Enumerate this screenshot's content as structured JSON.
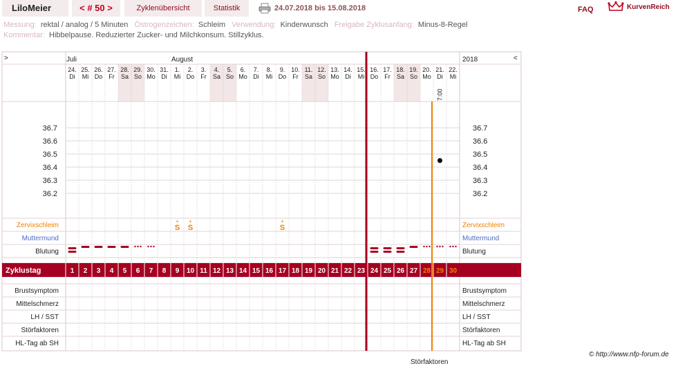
{
  "header": {
    "user": "LiloMeier",
    "nav_prev": "<",
    "nav_label": "# 50",
    "nav_next": ">",
    "tab_cycles": "Zyklenübersicht",
    "tab_stats": "Statistik",
    "date_range": "24.07.2018 bis 15.08.2018",
    "faq": "FAQ",
    "brand": "KurvenReich"
  },
  "info": {
    "measurement_label": "Messung:",
    "measurement_value": "rektal / analog / 5 Minuten",
    "estrogen_label": "Östrogenzeichen:",
    "estrogen_value": "Schleim",
    "usage_label": "Verwendung:",
    "usage_value": "Kinderwunsch",
    "release_label": "Freigabe Zyklusanfang:",
    "release_value": "Minus-8-Regel",
    "comment_label": "Kommentar:",
    "comment_value": "Hibbelpause. Reduzierter Zucker- und Milchkonsum. Stillzyklus."
  },
  "chart": {
    "left_arrow": ">",
    "right_arrow": "<",
    "year": "2018",
    "months": [
      {
        "label": "Juli",
        "day_index": 0
      },
      {
        "label": "August",
        "day_index": 8
      }
    ],
    "days": [
      {
        "d": "24.",
        "w": "Di"
      },
      {
        "d": "25.",
        "w": "Mi"
      },
      {
        "d": "26.",
        "w": "Do"
      },
      {
        "d": "27.",
        "w": "Fr"
      },
      {
        "d": "28.",
        "w": "Sa"
      },
      {
        "d": "29.",
        "w": "So"
      },
      {
        "d": "30.",
        "w": "Mo"
      },
      {
        "d": "31.",
        "w": "Di"
      },
      {
        "d": "1.",
        "w": "Mi"
      },
      {
        "d": "2.",
        "w": "Do"
      },
      {
        "d": "3.",
        "w": "Fr"
      },
      {
        "d": "4.",
        "w": "Sa"
      },
      {
        "d": "5.",
        "w": "So"
      },
      {
        "d": "6.",
        "w": "Mo"
      },
      {
        "d": "7.",
        "w": "Di"
      },
      {
        "d": "8.",
        "w": "Mi"
      },
      {
        "d": "9.",
        "w": "Do"
      },
      {
        "d": "10.",
        "w": "Fr"
      },
      {
        "d": "11.",
        "w": "Sa"
      },
      {
        "d": "12.",
        "w": "So"
      },
      {
        "d": "13.",
        "w": "Mo"
      },
      {
        "d": "14.",
        "w": "Di"
      },
      {
        "d": "15.",
        "w": "Mi"
      },
      {
        "d": "16.",
        "w": "Do"
      },
      {
        "d": "17.",
        "w": "Fr"
      },
      {
        "d": "18.",
        "w": "Sa"
      },
      {
        "d": "19.",
        "w": "So"
      },
      {
        "d": "20.",
        "w": "Mo"
      },
      {
        "d": "21.",
        "w": "Di"
      },
      {
        "d": "22.",
        "w": "Mi"
      }
    ],
    "weekend_index": [
      4,
      5,
      11,
      12,
      18,
      19,
      25,
      26
    ],
    "time_label": "7:00",
    "time_day_index": 28,
    "temp_ticks": [
      "36.7",
      "36.6",
      "36.5",
      "36.4",
      "36.3",
      "36.2"
    ],
    "temperature_points": [
      {
        "day_index": 28,
        "value": 36.45
      }
    ],
    "cervix_label": "Zervixschleim",
    "cervix_marks": [
      {
        "day_index": 8,
        "symbol": "S"
      },
      {
        "day_index": 9,
        "symbol": "S"
      },
      {
        "day_index": 16,
        "symbol": "S"
      }
    ],
    "cervix_plus": "+",
    "mumu_label": "Muttermund",
    "bleeding_label": "Blutung",
    "bleeding": [
      {
        "day_index": 0,
        "type": "heavy"
      },
      {
        "day_index": 1,
        "type": "dash"
      },
      {
        "day_index": 2,
        "type": "dash"
      },
      {
        "day_index": 3,
        "type": "dash"
      },
      {
        "day_index": 4,
        "type": "dash"
      },
      {
        "day_index": 5,
        "type": "dots"
      },
      {
        "day_index": 6,
        "type": "dots"
      },
      {
        "day_index": 23,
        "type": "heavy"
      },
      {
        "day_index": 24,
        "type": "heavy"
      },
      {
        "day_index": 25,
        "type": "heavy"
      },
      {
        "day_index": 26,
        "type": "dash"
      },
      {
        "day_index": 27,
        "type": "dots"
      },
      {
        "day_index": 28,
        "type": "dots"
      },
      {
        "day_index": 29,
        "type": "dots"
      }
    ],
    "cycle_label": "Zyklustag",
    "cycle_days": [
      "1",
      "2",
      "3",
      "4",
      "5",
      "6",
      "7",
      "8",
      "9",
      "10",
      "11",
      "12",
      "13",
      "14",
      "15",
      "16",
      "17",
      "18",
      "19",
      "20",
      "21",
      "22",
      "23",
      "24",
      "25",
      "26",
      "27",
      "28",
      "29",
      "30"
    ],
    "cycle_future_from_index": 27,
    "cycle_start_line_index": 23,
    "today_line_index": 27,
    "bottom_rows": [
      "Brustsymptom",
      "Mittelschmerz",
      "LH / SST",
      "Störfaktoren",
      "HL-Tag ab SH"
    ],
    "colors": {
      "accent": "#a50021",
      "orange": "#f08000",
      "blue": "#4a6cc8",
      "weekend": "#f3e6e6"
    }
  },
  "footer": {
    "copyright": "© http://www.nfp-forum.de",
    "cutoff": "Störfaktoren"
  }
}
